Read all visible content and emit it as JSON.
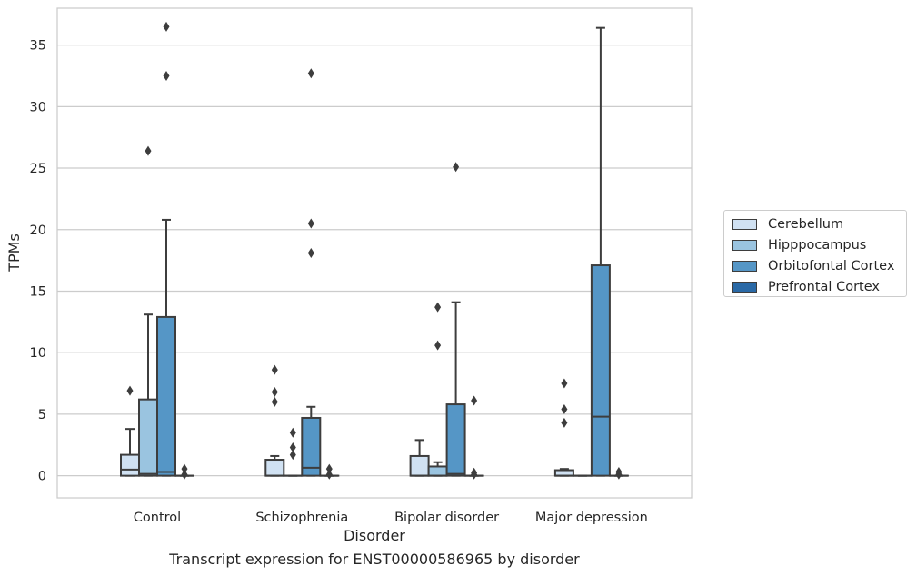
{
  "chart_data": {
    "type": "box",
    "title": "",
    "caption": "Transcript expression for ENST00000586965 by disorder",
    "xlabel": "Disorder",
    "ylabel": "TPMs",
    "ylim": [
      -1.8,
      38
    ],
    "yticks": [
      0,
      5,
      10,
      15,
      20,
      25,
      30,
      35
    ],
    "grid": "horizontal",
    "legend_position": "right",
    "categories": [
      "Control",
      "Schizophrenia",
      "Bipolar disorder",
      "Major depression"
    ],
    "series": [
      {
        "name": "Cerebellum",
        "color": "#d0e1f2",
        "boxes": [
          {
            "q1": 0.0,
            "median": 0.5,
            "q3": 1.7,
            "wlow": 0.0,
            "whigh": 3.8,
            "outliers": [
              6.9
            ]
          },
          {
            "q1": 0.0,
            "median": 0.0,
            "q3": 1.3,
            "wlow": 0.0,
            "whigh": 1.6,
            "outliers": [
              8.6,
              6.8,
              6.0
            ]
          },
          {
            "q1": 0.0,
            "median": 0.0,
            "q3": 1.6,
            "wlow": 0.0,
            "whigh": 2.9,
            "outliers": []
          },
          {
            "q1": 0.0,
            "median": 0.0,
            "q3": 0.45,
            "wlow": 0.0,
            "whigh": 0.55,
            "outliers": [
              7.5,
              5.4,
              4.3
            ]
          }
        ]
      },
      {
        "name": "Hipppocampus",
        "color": "#9ac4e0",
        "boxes": [
          {
            "q1": 0.0,
            "median": 0.15,
            "q3": 6.2,
            "wlow": 0.0,
            "whigh": 13.1,
            "outliers": [
              26.4
            ]
          },
          {
            "q1": 0.0,
            "median": 0.0,
            "q3": 0.0,
            "wlow": 0.0,
            "whigh": 0.0,
            "outliers": [
              3.5,
              2.3,
              1.7
            ]
          },
          {
            "q1": 0.0,
            "median": 0.0,
            "q3": 0.75,
            "wlow": 0.0,
            "whigh": 1.1,
            "outliers": [
              13.7,
              10.6
            ]
          },
          {
            "q1": 0.0,
            "median": 0.0,
            "q3": 0.0,
            "wlow": 0.0,
            "whigh": 0.0,
            "outliers": []
          }
        ]
      },
      {
        "name": "Orbitofontal Cortex",
        "color": "#5596c6",
        "boxes": [
          {
            "q1": 0.0,
            "median": 0.3,
            "q3": 12.9,
            "wlow": 0.0,
            "whigh": 20.8,
            "outliers": [
              36.5,
              32.5
            ]
          },
          {
            "q1": 0.0,
            "median": 0.65,
            "q3": 4.7,
            "wlow": 0.0,
            "whigh": 5.6,
            "outliers": [
              32.7,
              20.5,
              18.1
            ]
          },
          {
            "q1": 0.0,
            "median": 0.15,
            "q3": 5.8,
            "wlow": 0.0,
            "whigh": 14.1,
            "outliers": [
              25.1
            ]
          },
          {
            "q1": 0.0,
            "median": 4.8,
            "q3": 17.1,
            "wlow": 0.0,
            "whigh": 36.4,
            "outliers": []
          }
        ]
      },
      {
        "name": "Prefrontal Cortex",
        "color": "#2a69a6",
        "boxes": [
          {
            "q1": 0.0,
            "median": 0.0,
            "q3": 0.0,
            "wlow": 0.0,
            "whigh": 0.0,
            "outliers": [
              0.55,
              0.1
            ]
          },
          {
            "q1": 0.0,
            "median": 0.0,
            "q3": 0.0,
            "wlow": 0.0,
            "whigh": 0.0,
            "outliers": [
              0.55,
              0.1
            ]
          },
          {
            "q1": 0.0,
            "median": 0.0,
            "q3": 0.0,
            "wlow": 0.0,
            "whigh": 0.0,
            "outliers": [
              6.1,
              0.25,
              0.1
            ]
          },
          {
            "q1": 0.0,
            "median": 0.0,
            "q3": 0.0,
            "wlow": 0.0,
            "whigh": 0.0,
            "outliers": [
              0.3,
              0.1
            ]
          }
        ]
      }
    ]
  }
}
